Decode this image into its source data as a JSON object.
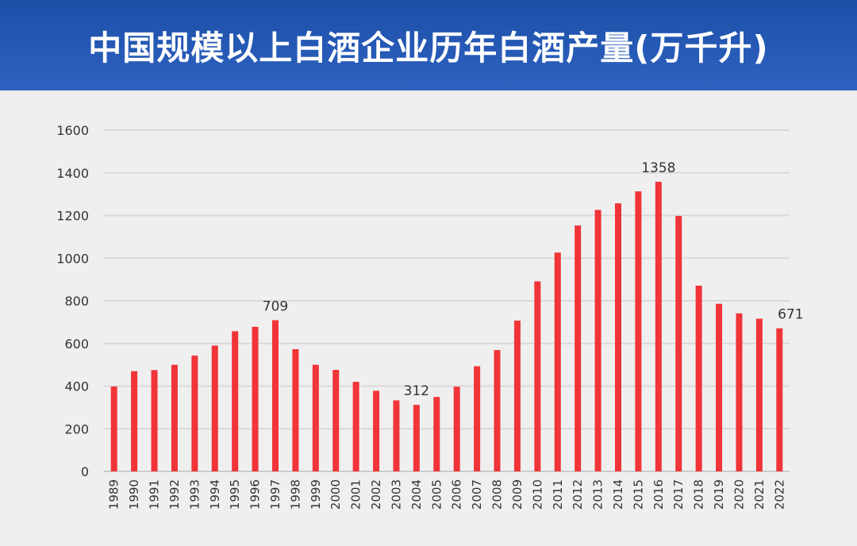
{
  "header": {
    "title": "中国规模以上白酒企业历年白酒产量(万千升)"
  },
  "colors": {
    "header_bg": "#2656b4",
    "bar": "#f03438",
    "grid": "#d9d9d9",
    "axis_text": "#333333"
  },
  "chart_data": {
    "type": "bar",
    "title": "中国规模以上白酒企业历年白酒产量(万千升)",
    "xlabel": "",
    "ylabel": "",
    "ylim": [
      0,
      1600
    ],
    "yticks": [
      0,
      200,
      400,
      600,
      800,
      1000,
      1200,
      1400,
      1600
    ],
    "grid": true,
    "categories": [
      "1989",
      "1990",
      "1991",
      "1992",
      "1993",
      "1994",
      "1995",
      "1996",
      "1997",
      "1998",
      "1999",
      "2000",
      "2001",
      "2002",
      "2003",
      "2004",
      "2005",
      "2006",
      "2007",
      "2008",
      "2009",
      "2010",
      "2011",
      "2012",
      "2013",
      "2014",
      "2015",
      "2016",
      "2017",
      "2018",
      "2019",
      "2020",
      "2021",
      "2022"
    ],
    "values": [
      398,
      470,
      475,
      500,
      543,
      590,
      657,
      678,
      709,
      573,
      500,
      476,
      420,
      378,
      333,
      312,
      349,
      397,
      493,
      569,
      707,
      891,
      1026,
      1153,
      1226,
      1257,
      1313,
      1358,
      1198,
      871,
      786,
      741,
      716,
      671
    ],
    "annotations": [
      {
        "category": "1997",
        "label": "709"
      },
      {
        "category": "2004",
        "label": "312"
      },
      {
        "category": "2016",
        "label": "1358"
      },
      {
        "category": "2022",
        "label": "671"
      }
    ]
  }
}
